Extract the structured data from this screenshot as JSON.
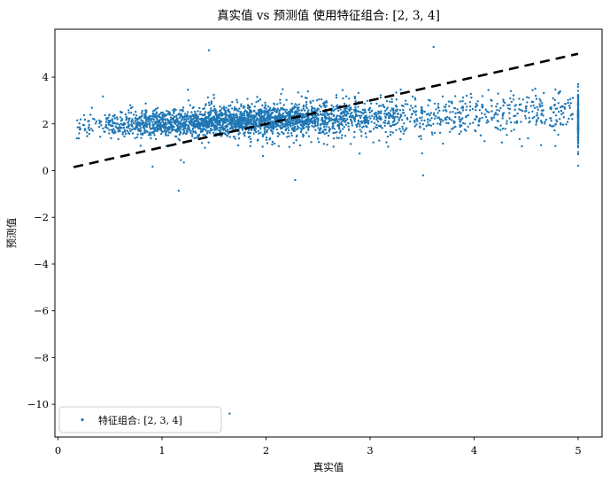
{
  "chart_data": {
    "type": "scatter",
    "title": "真实值 vs 预测值 使用特征组合: [2, 3, 4]",
    "xlabel": "真实值",
    "ylabel": "预测值",
    "x_ticks": [
      0,
      1,
      2,
      3,
      4,
      5
    ],
    "y_ticks": [
      4,
      2,
      0,
      -2,
      -4,
      -6,
      -8,
      -10
    ],
    "xlim": [
      -0.03,
      5.23
    ],
    "ylim": [
      -11.4,
      6.05
    ],
    "grid": false,
    "point_color": "#1f77b4",
    "identity_line": {
      "from": [
        0.15,
        0.15
      ],
      "to": [
        5.0,
        5.0
      ],
      "style": "dashed",
      "color": "#000000"
    },
    "legend": {
      "label": "特征组合: [2, 3, 4]",
      "position": "lower left",
      "border_color": "#cccccc"
    },
    "cloud": {
      "seed": 42,
      "n": 3000,
      "x_core": {
        "mean": 1.6,
        "std": 0.75,
        "min": 0.45,
        "max": 3.3,
        "weight": 0.7
      },
      "x_tail": {
        "min": 1.7,
        "max": 4.95,
        "weight": 0.29
      },
      "x_low": {
        "min": 0.18,
        "max": 0.45,
        "weight": 0.01
      },
      "y_base": 1.88,
      "y_slope": 0.14,
      "noise_base": 0.22,
      "noise_slope": 0.05,
      "wide_frac": 0.07,
      "wide_mult": 2.1,
      "y_min": 0.85,
      "y_max": 3.55
    },
    "max_value_strip": {
      "x": 5.0,
      "n": 140,
      "y_mean": 2.25,
      "y_std": 0.62,
      "y_min": 0.62,
      "y_max": 3.75
    },
    "outliers": [
      [
        1.45,
        5.15
      ],
      [
        3.61,
        5.29
      ],
      [
        1.65,
        -10.4
      ],
      [
        1.16,
        -0.86
      ],
      [
        2.28,
        -0.4
      ],
      [
        3.51,
        -0.2
      ],
      [
        0.91,
        0.17
      ],
      [
        1.18,
        0.45
      ],
      [
        1.21,
        0.35
      ],
      [
        1.97,
        0.62
      ],
      [
        2.9,
        0.73
      ],
      [
        3.5,
        0.74
      ],
      [
        4.46,
        1.04
      ],
      [
        5.0,
        0.21
      ],
      [
        0.18,
        1.38
      ],
      [
        0.3,
        1.57
      ],
      [
        0.25,
        1.95
      ]
    ]
  }
}
